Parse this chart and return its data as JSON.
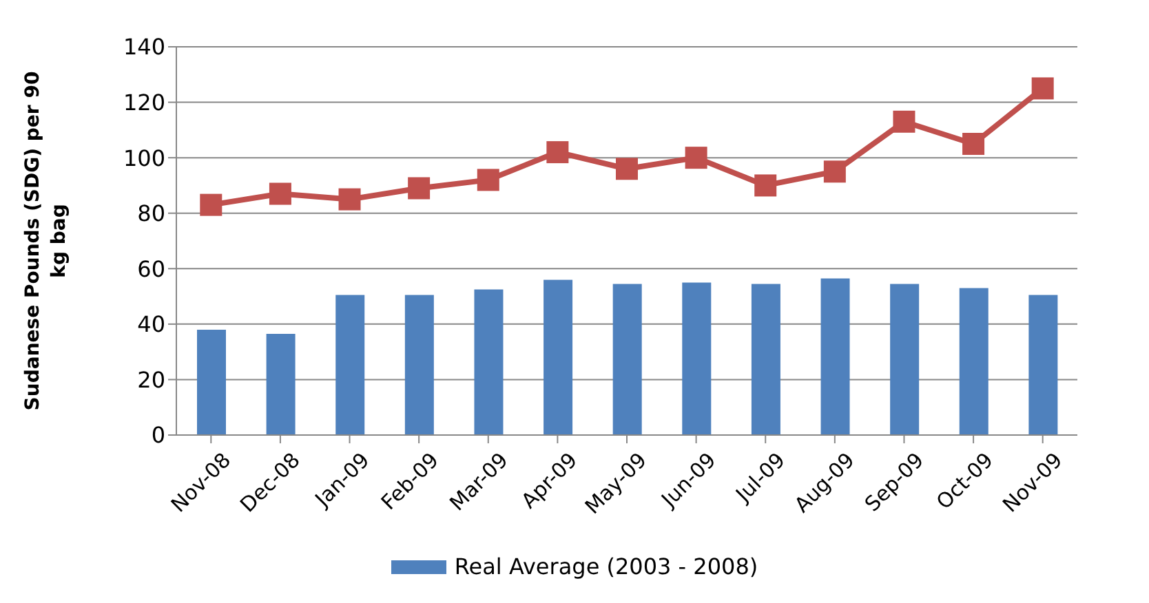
{
  "chart_data": {
    "type": "bar",
    "ylabel": "Sudanese Pounds (SDG) per 90 kg bag",
    "categories": [
      "Nov-08",
      "Dec-08",
      "Jan-09",
      "Feb-09",
      "Mar-09",
      "Apr-09",
      "May-09",
      "Jun-09",
      "Jul-09",
      "Aug-09",
      "Sep-09",
      "Oct-09",
      "Nov-09"
    ],
    "series": [
      {
        "name": "Real Average (2003 - 2008)",
        "color": "#4f81bd",
        "values": [
          38,
          36.5,
          50.5,
          50.5,
          52.5,
          56,
          54.5,
          55,
          54.5,
          56.5,
          54.5,
          53,
          50.5
        ]
      },
      {
        "type": "line",
        "color": "#c0504d",
        "marker": "square",
        "values": [
          83,
          87,
          85,
          89,
          92,
          102,
          96,
          100,
          90,
          95,
          113,
          105,
          125
        ]
      }
    ],
    "ylim": [
      0,
      140
    ],
    "yticks": [
      0,
      20,
      40,
      60,
      80,
      100,
      120,
      140
    ],
    "grid": "y",
    "legend": "bottom"
  }
}
